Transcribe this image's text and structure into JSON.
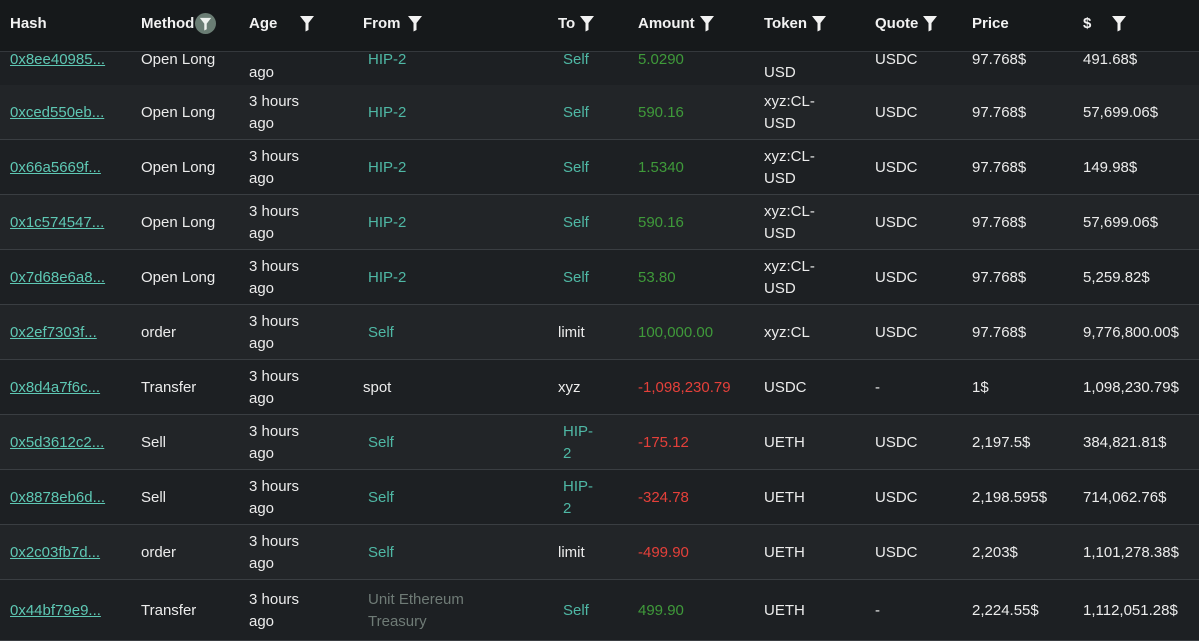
{
  "header": {
    "hash": "Hash",
    "method": "Method",
    "age": "Age",
    "from": "From",
    "to": "To",
    "amount": "Amount",
    "token": "Token",
    "quote": "Quote",
    "price": "Price",
    "usd": "$"
  },
  "rows": [
    {
      "hash": "0x8ee40985...",
      "method": "Open Long",
      "age": "ago",
      "from": "HIP-2",
      "to": "Self",
      "amount": "5.0290",
      "token": "USD",
      "quote": "USDC",
      "price": "97.768$",
      "usd": "491.68$"
    },
    {
      "hash": "0xced550eb...",
      "method": "Open Long",
      "age": "3 hours ago",
      "from": "HIP-2",
      "to": "Self",
      "amount": "590.16",
      "token": "xyz:CL-USD",
      "quote": "USDC",
      "price": "97.768$",
      "usd": "57,699.06$"
    },
    {
      "hash": "0x66a5669f...",
      "method": "Open Long",
      "age": "3 hours ago",
      "from": "HIP-2",
      "to": "Self",
      "amount": "1.5340",
      "token": "xyz:CL-USD",
      "quote": "USDC",
      "price": "97.768$",
      "usd": "149.98$"
    },
    {
      "hash": "0x1c574547...",
      "method": "Open Long",
      "age": "3 hours ago",
      "from": "HIP-2",
      "to": "Self",
      "amount": "590.16",
      "token": "xyz:CL-USD",
      "quote": "USDC",
      "price": "97.768$",
      "usd": "57,699.06$"
    },
    {
      "hash": "0x7d68e6a8...",
      "method": "Open Long",
      "age": "3 hours ago",
      "from": "HIP-2",
      "to": "Self",
      "amount": "53.80",
      "token": "xyz:CL-USD",
      "quote": "USDC",
      "price": "97.768$",
      "usd": "5,259.82$"
    },
    {
      "hash": "0x2ef7303f...",
      "method": "order",
      "age": "3 hours ago",
      "from": "Self",
      "to": "limit",
      "amount": "100,000.00",
      "token": "xyz:CL",
      "quote": "USDC",
      "price": "97.768$",
      "usd": "9,776,800.00$"
    },
    {
      "hash": "0x8d4a7f6c...",
      "method": "Transfer",
      "age": "3 hours ago",
      "from": "spot",
      "to": "xyz",
      "amount": "-1,098,230.79",
      "token": "USDC",
      "quote": "-",
      "price": "1$",
      "usd": "1,098,230.79$"
    },
    {
      "hash": "0x5d3612c2...",
      "method": "Sell",
      "age": "3 hours ago",
      "from": "Self",
      "to": "HIP-2",
      "amount": "-175.12",
      "token": "UETH",
      "quote": "USDC",
      "price": "2,197.5$",
      "usd": "384,821.81$"
    },
    {
      "hash": "0x8878eb6d...",
      "method": "Sell",
      "age": "3 hours ago",
      "from": "Self",
      "to": "HIP-2",
      "amount": "-324.78",
      "token": "UETH",
      "quote": "USDC",
      "price": "2,198.595$",
      "usd": "714,062.76$"
    },
    {
      "hash": "0x2c03fb7d...",
      "method": "order",
      "age": "3 hours ago",
      "from": "Self",
      "to": "limit",
      "amount": "-499.90",
      "token": "UETH",
      "quote": "USDC",
      "price": "2,203$",
      "usd": "1,101,278.38$"
    },
    {
      "hash": "0x44bf79e9...",
      "method": "Transfer",
      "age": "3 hours ago",
      "from": "Unit Ethereum Treasury",
      "to": "Self",
      "amount": "499.90",
      "token": "UETH",
      "quote": "-",
      "price": "2,224.55$",
      "usd": "1,112,051.28$"
    }
  ]
}
